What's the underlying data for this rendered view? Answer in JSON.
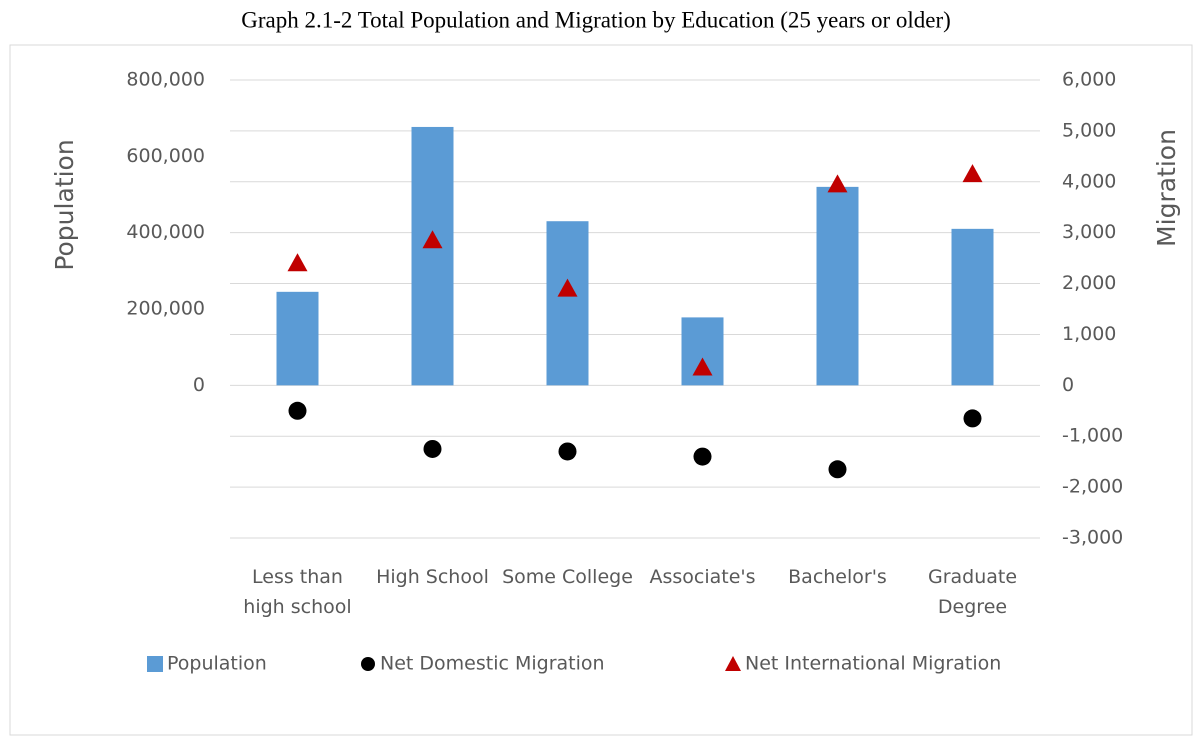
{
  "chart_data": {
    "type": "bar",
    "title": "Graph 2.1-2 Total Population and Migration by Education (25 years or older)",
    "y_label": "Population",
    "y2_label": "Migration",
    "categories": [
      "Less than high school",
      "High School",
      "Some College",
      "Associate's",
      "Bachelor's",
      "Graduate Degree"
    ],
    "series": [
      {
        "name": "Population",
        "type": "bar",
        "color": "#5b9bd5",
        "values": [
          245000,
          677000,
          430000,
          178000,
          520000,
          410000
        ]
      },
      {
        "name": "Net Domestic Migration",
        "type": "scatter",
        "marker": "circle",
        "axis": "y2",
        "color": "#000000",
        "values": [
          -500,
          -1250,
          -1300,
          -1400,
          -1650,
          -650
        ]
      },
      {
        "name": "Net International Migration",
        "type": "scatter",
        "marker": "triangle",
        "axis": "y2",
        "color": "#c00000",
        "values": [
          2400,
          2850,
          1900,
          350,
          3950,
          4150
        ]
      }
    ],
    "ylim": [
      -400000,
      800000
    ],
    "yticks": [
      0,
      {
        "value": 200000,
        "label": "200,000"
      },
      {
        "value": 400000,
        "label": "400,000"
      },
      {
        "value": 600000,
        "label": "600,000"
      },
      {
        "value": 800000,
        "label": "800,000"
      }
    ],
    "y2lim": [
      -3000,
      6000
    ],
    "y2ticks": [
      {
        "value": -3000,
        "label": "-3,000"
      },
      {
        "value": -2000,
        "label": "-2,000"
      },
      {
        "value": -1000,
        "label": "-1,000"
      },
      0,
      {
        "value": 1000,
        "label": "1,000"
      },
      {
        "value": 2000,
        "label": "2,000"
      },
      {
        "value": 3000,
        "label": "3,000"
      },
      {
        "value": 4000,
        "label": "4,000"
      },
      {
        "value": 5000,
        "label": "5,000"
      },
      {
        "value": 6000,
        "label": "6,000"
      }
    ],
    "grid": true,
    "legend": "bottom"
  }
}
